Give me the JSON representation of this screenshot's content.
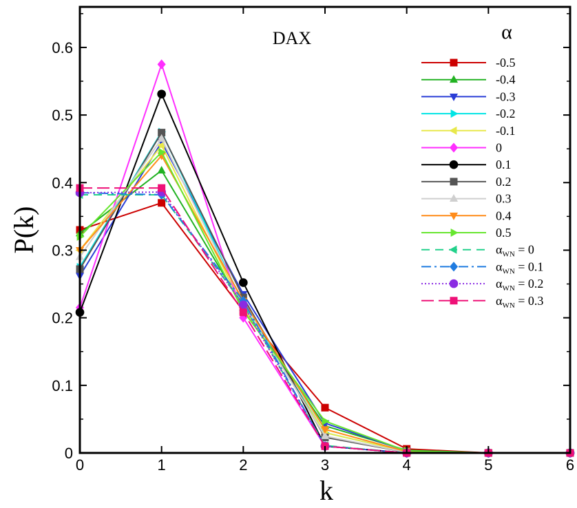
{
  "chart_data": {
    "type": "line",
    "title": "DAX",
    "xlabel": "k",
    "ylabel": "P(k)",
    "xlim": [
      0,
      6
    ],
    "ylim": [
      0,
      0.66
    ],
    "x": [
      0,
      1,
      2,
      3,
      4,
      5,
      6
    ],
    "x_ticks": [
      "0",
      "1",
      "2",
      "3",
      "4",
      "5",
      "6"
    ],
    "y_ticks": [
      {
        "value": 0,
        "label": "0"
      },
      {
        "value": 0.1,
        "label": "0.1"
      },
      {
        "value": 0.2,
        "label": "0.2"
      },
      {
        "value": 0.3,
        "label": "0.3"
      },
      {
        "value": 0.4,
        "label": "0.4"
      },
      {
        "value": 0.5,
        "label": "0.5"
      },
      {
        "value": 0.6,
        "label": "0.6"
      }
    ],
    "legend_title": "α",
    "legend_position": "top-right",
    "grid": false,
    "series": [
      {
        "name": "-0.5",
        "color": "#cc0000",
        "marker": "square",
        "dash": "solid",
        "values": [
          0.33,
          0.37,
          0.21,
          0.067,
          0.006,
          0.0,
          0.0
        ]
      },
      {
        "name": "-0.4",
        "color": "#22b222",
        "marker": "triangle-up",
        "dash": "solid",
        "values": [
          0.325,
          0.418,
          0.215,
          0.04,
          0.004,
          0.0,
          0.0
        ]
      },
      {
        "name": "-0.3",
        "color": "#2a3dd6",
        "marker": "triangle-down",
        "dash": "solid",
        "values": [
          0.262,
          0.46,
          0.235,
          0.044,
          0.003,
          0.0,
          0.0
        ]
      },
      {
        "name": "-0.2",
        "color": "#00e5e5",
        "marker": "triangle-right",
        "dash": "solid",
        "values": [
          0.275,
          0.475,
          0.22,
          0.03,
          0.002,
          0.0,
          0.0
        ]
      },
      {
        "name": "-0.1",
        "color": "#e8e84a",
        "marker": "triangle-left",
        "dash": "solid",
        "values": [
          0.3,
          0.455,
          0.215,
          0.03,
          0.002,
          0.0,
          0.0
        ]
      },
      {
        "name": "0",
        "color": "#ff2eff",
        "marker": "diamond",
        "dash": "solid",
        "values": [
          0.215,
          0.575,
          0.2,
          0.01,
          0.0,
          0.0,
          0.0
        ]
      },
      {
        "name": "0.1",
        "color": "#000000",
        "marker": "circle",
        "dash": "solid",
        "values": [
          0.208,
          0.531,
          0.252,
          0.01,
          0.0,
          0.0,
          0.0
        ]
      },
      {
        "name": "0.2",
        "color": "#555555",
        "marker": "square",
        "dash": "solid",
        "values": [
          0.272,
          0.474,
          0.23,
          0.023,
          0.001,
          0.0,
          0.0
        ]
      },
      {
        "name": "0.3",
        "color": "#cfcfcf",
        "marker": "triangle-up",
        "dash": "solid",
        "values": [
          0.29,
          0.465,
          0.22,
          0.025,
          0.001,
          0.0,
          0.0
        ]
      },
      {
        "name": "0.4",
        "color": "#ff8c1a",
        "marker": "triangle-down",
        "dash": "solid",
        "values": [
          0.3,
          0.44,
          0.225,
          0.035,
          0.002,
          0.0,
          0.0
        ]
      },
      {
        "name": "0.5",
        "color": "#66e62e",
        "marker": "triangle-right",
        "dash": "solid",
        "values": [
          0.32,
          0.445,
          0.21,
          0.047,
          0.003,
          0.0,
          0.0
        ]
      },
      {
        "name": "αWN = 0",
        "label_main": "α",
        "label_sub": "WN",
        "label_rest": " = 0",
        "color": "#22d18b",
        "marker": "triangle-left",
        "dash": "12,8",
        "values": [
          0.382,
          0.382,
          0.22,
          0.011,
          0.0,
          0.0,
          0.0
        ]
      },
      {
        "name": "αWN = 0.1",
        "label_main": "α",
        "label_sub": "WN",
        "label_rest": " = 0.1",
        "color": "#1f7be0",
        "marker": "diamond",
        "dash": "14,5,3,5",
        "values": [
          0.385,
          0.382,
          0.225,
          0.01,
          0.0,
          0.0,
          0.0
        ]
      },
      {
        "name": "αWN = 0.2",
        "label_main": "α",
        "label_sub": "WN",
        "label_rest": " = 0.2",
        "color": "#8a2be2",
        "marker": "circle",
        "dash": "2,3",
        "values": [
          0.385,
          0.386,
          0.219,
          0.01,
          0.0,
          0.0,
          0.0
        ]
      },
      {
        "name": "αWN = 0.3",
        "label_main": "α",
        "label_sub": "WN",
        "label_rest": " = 0.3",
        "color": "#ee1177",
        "marker": "square",
        "dash": "18,7",
        "values": [
          0.392,
          0.392,
          0.208,
          0.01,
          0.0,
          0.0,
          0.0
        ]
      }
    ]
  }
}
